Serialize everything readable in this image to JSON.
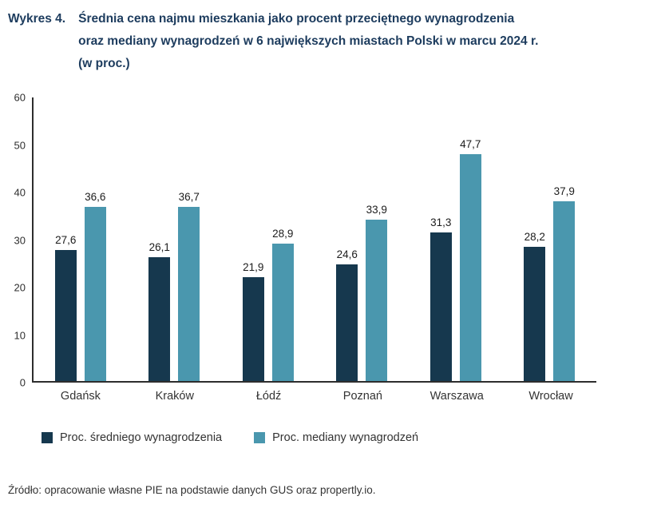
{
  "header": {
    "label": "Wykres 4.",
    "title_lines": [
      "Średnia cena najmu mieszkania jako procent przeciętnego wynagrodzenia",
      "oraz mediany wynagrodzeń w 6 największych miastach Polski w marcu 2024 r.",
      "(w proc.)"
    ]
  },
  "chart_data": {
    "type": "bar",
    "categories": [
      "Gdańsk",
      "Kraków",
      "Łódź",
      "Poznań",
      "Warszawa",
      "Wrocław"
    ],
    "series": [
      {
        "name": "Proc. średniego wynagrodzenia",
        "color": "#16384e",
        "values": [
          27.6,
          26.1,
          21.9,
          24.6,
          31.3,
          28.2
        ],
        "labels": [
          "27,6",
          "26,1",
          "21,9",
          "24,6",
          "31,3",
          "28,2"
        ]
      },
      {
        "name": "Proc. mediany wynagrodzeń",
        "color": "#4a97ae",
        "values": [
          36.6,
          36.7,
          28.9,
          33.9,
          47.7,
          37.9
        ],
        "labels": [
          "36,6",
          "36,7",
          "28,9",
          "33,9",
          "47,7",
          "37,9"
        ]
      }
    ],
    "title": "Średnia cena najmu mieszkania jako procent przeciętnego wynagrodzenia oraz mediany wynagrodzeń w 6 największych miastach Polski w marcu 2024 r. (w proc.)",
    "xlabel": "",
    "ylabel": "",
    "ylim": [
      0,
      60
    ],
    "yticks": [
      0,
      10,
      20,
      30,
      40,
      50,
      60
    ],
    "grid": false,
    "legend_position": "bottom"
  },
  "footer": {
    "source": "Źródło: opracowanie własne PIE na podstawie danych GUS oraz propertly.io."
  }
}
